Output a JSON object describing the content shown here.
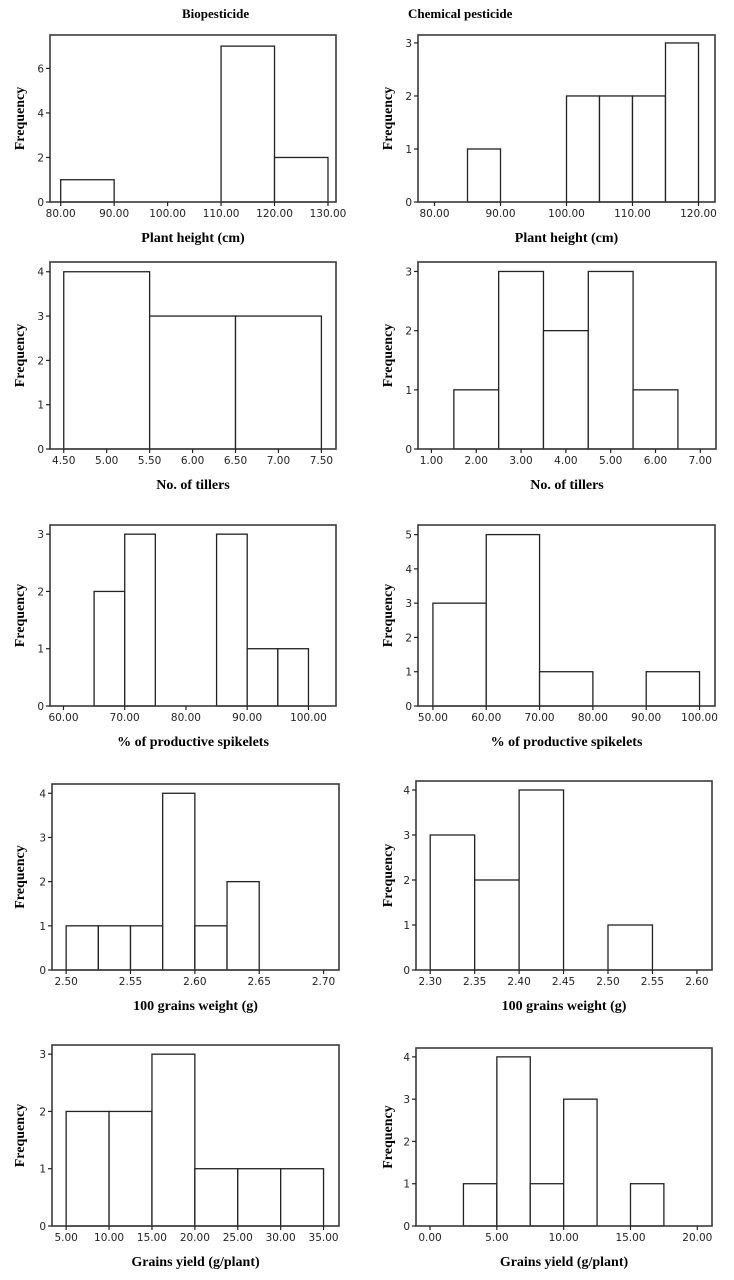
{
  "column_titles": [
    "Biopesticide",
    "Chemical pesticide"
  ],
  "chart_data": [
    {
      "type": "bar",
      "subtype": "histogram",
      "group": "Biopesticide",
      "xlabel": "Plant height (cm)",
      "ylabel": "Frequency",
      "xticks": [
        80,
        90,
        100,
        110,
        120,
        130
      ],
      "xtick_labels": [
        "80.00",
        "90.00",
        "100.00",
        "110.00",
        "120.00",
        "130.00"
      ],
      "xlim": [
        78,
        131.5
      ],
      "yticks": [
        0,
        2,
        4,
        6
      ],
      "ylim": [
        0,
        7.5
      ],
      "bins": [
        {
          "x0": 80,
          "x1": 90,
          "count": 1
        },
        {
          "x0": 110,
          "x1": 120,
          "count": 7
        },
        {
          "x0": 120,
          "x1": 130,
          "count": 2
        }
      ]
    },
    {
      "type": "bar",
      "subtype": "histogram",
      "group": "Chemical pesticide",
      "xlabel": "Plant height (cm)",
      "ylabel": "Frequency",
      "xticks": [
        80,
        90,
        100,
        110,
        120
      ],
      "xtick_labels": [
        "80.00",
        "90.00",
        "100.00",
        "110.00",
        "120.00"
      ],
      "xlim": [
        77.5,
        122.5
      ],
      "yticks": [
        0,
        1,
        2,
        3
      ],
      "ylim": [
        0,
        3.15
      ],
      "bins": [
        {
          "x0": 85,
          "x1": 90,
          "count": 1
        },
        {
          "x0": 100,
          "x1": 105,
          "count": 2
        },
        {
          "x0": 105,
          "x1": 110,
          "count": 2
        },
        {
          "x0": 110,
          "x1": 115,
          "count": 2
        },
        {
          "x0": 115,
          "x1": 120,
          "count": 3
        }
      ]
    },
    {
      "type": "bar",
      "subtype": "histogram",
      "group": "Biopesticide",
      "xlabel": "No. of tillers",
      "ylabel": "Frequency",
      "xticks": [
        4.5,
        5,
        5.5,
        6,
        6.5,
        7,
        7.5
      ],
      "xtick_labels": [
        "4.50",
        "5.00",
        "5.50",
        "6.00",
        "6.50",
        "7.00",
        "7.50"
      ],
      "xlim": [
        4.34,
        7.67
      ],
      "yticks": [
        0,
        1,
        2,
        3,
        4
      ],
      "ylim": [
        0,
        4.22
      ],
      "bins": [
        {
          "x0": 4.5,
          "x1": 5.5,
          "count": 4
        },
        {
          "x0": 5.5,
          "x1": 6.5,
          "count": 3
        },
        {
          "x0": 6.5,
          "x1": 7.5,
          "count": 3
        }
      ]
    },
    {
      "type": "bar",
      "subtype": "histogram",
      "group": "Chemical pesticide",
      "xlabel": "No. of tillers",
      "ylabel": "Frequency",
      "xticks": [
        1,
        2,
        3,
        4,
        5,
        6,
        7
      ],
      "xtick_labels": [
        "1.00",
        "2.00",
        "3.00",
        "4.00",
        "5.00",
        "6.00",
        "7.00"
      ],
      "xlim": [
        0.7,
        7.35
      ],
      "yticks": [
        0,
        1,
        2,
        3
      ],
      "ylim": [
        0,
        3.16
      ],
      "bins": [
        {
          "x0": 1.5,
          "x1": 2.5,
          "count": 1
        },
        {
          "x0": 2.5,
          "x1": 3.5,
          "count": 3
        },
        {
          "x0": 3.5,
          "x1": 4.5,
          "count": 2
        },
        {
          "x0": 4.5,
          "x1": 5.5,
          "count": 3
        },
        {
          "x0": 5.5,
          "x1": 6.5,
          "count": 1
        }
      ]
    },
    {
      "type": "bar",
      "subtype": "histogram",
      "group": "Biopesticide",
      "xlabel": "% of productive spikelets",
      "ylabel": "Frequency",
      "xticks": [
        60,
        70,
        80,
        90,
        100
      ],
      "xtick_labels": [
        "60.00",
        "70.00",
        "80.00",
        "90.00",
        "100.00"
      ],
      "xlim": [
        57.8,
        104.5
      ],
      "yticks": [
        0,
        1,
        2,
        3
      ],
      "ylim": [
        0,
        3.16
      ],
      "bins": [
        {
          "x0": 65,
          "x1": 70,
          "count": 2
        },
        {
          "x0": 70,
          "x1": 75,
          "count": 3
        },
        {
          "x0": 85,
          "x1": 90,
          "count": 3
        },
        {
          "x0": 90,
          "x1": 95,
          "count": 1
        },
        {
          "x0": 95,
          "x1": 100,
          "count": 1
        }
      ]
    },
    {
      "type": "bar",
      "subtype": "histogram",
      "group": "Chemical pesticide",
      "xlabel": "% of productive spikelets",
      "ylabel": "Frequency",
      "xticks": [
        50,
        60,
        70,
        80,
        90,
        100
      ],
      "xtick_labels": [
        "50.00",
        "60.00",
        "70.00",
        "80.00",
        "90.00",
        "100.00"
      ],
      "xlim": [
        47.2,
        102.9
      ],
      "yticks": [
        0,
        1,
        2,
        3,
        4,
        5
      ],
      "ylim": [
        0,
        5.28
      ],
      "bins": [
        {
          "x0": 50,
          "x1": 60,
          "count": 3
        },
        {
          "x0": 60,
          "x1": 70,
          "count": 5
        },
        {
          "x0": 70,
          "x1": 80,
          "count": 1
        },
        {
          "x0": 90,
          "x1": 100,
          "count": 1
        }
      ]
    },
    {
      "type": "bar",
      "subtype": "histogram",
      "group": "Biopesticide",
      "xlabel": "100 grains weight (g)",
      "ylabel": "Frequency",
      "xticks": [
        2.5,
        2.55,
        2.6,
        2.65,
        2.7
      ],
      "xtick_labels": [
        "2.50",
        "2.55",
        "2.60",
        "2.65",
        "2.70"
      ],
      "xlim": [
        2.489,
        2.712
      ],
      "yticks": [
        0,
        1,
        2,
        3,
        4
      ],
      "ylim": [
        0,
        4.21
      ],
      "bins": [
        {
          "x0": 2.5,
          "x1": 2.525,
          "count": 1
        },
        {
          "x0": 2.525,
          "x1": 2.55,
          "count": 1
        },
        {
          "x0": 2.55,
          "x1": 2.575,
          "count": 1
        },
        {
          "x0": 2.575,
          "x1": 2.6,
          "count": 4
        },
        {
          "x0": 2.6,
          "x1": 2.625,
          "count": 1
        },
        {
          "x0": 2.625,
          "x1": 2.65,
          "count": 2
        }
      ]
    },
    {
      "type": "bar",
      "subtype": "histogram",
      "group": "Chemical pesticide",
      "xlabel": "100 grains weight (g)",
      "ylabel": "Frequency",
      "xticks": [
        2.3,
        2.35,
        2.4,
        2.45,
        2.5,
        2.55,
        2.6
      ],
      "xtick_labels": [
        "2.30",
        "2.35",
        "2.40",
        "2.45",
        "2.50",
        "2.55",
        "2.60"
      ],
      "xlim": [
        2.284,
        2.617
      ],
      "yticks": [
        0,
        1,
        2,
        3,
        4
      ],
      "ylim": [
        0,
        4.2
      ],
      "bins": [
        {
          "x0": 2.3,
          "x1": 2.35,
          "count": 3
        },
        {
          "x0": 2.35,
          "x1": 2.4,
          "count": 2
        },
        {
          "x0": 2.4,
          "x1": 2.45,
          "count": 4
        },
        {
          "x0": 2.5,
          "x1": 2.55,
          "count": 1
        }
      ]
    },
    {
      "type": "bar",
      "subtype": "histogram",
      "group": "Biopesticide",
      "xlabel": "Grains yield (g/plant)",
      "ylabel": "Frequency",
      "xticks": [
        5,
        10,
        15,
        20,
        25,
        30,
        35
      ],
      "xtick_labels": [
        "5.00",
        "10.00",
        "15.00",
        "20.00",
        "25.00",
        "30.00",
        "35.00"
      ],
      "xlim": [
        3.35,
        36.8
      ],
      "yticks": [
        0,
        1,
        2,
        3
      ],
      "ylim": [
        0,
        3.16
      ],
      "bins": [
        {
          "x0": 5,
          "x1": 10,
          "count": 2
        },
        {
          "x0": 10,
          "x1": 15,
          "count": 2
        },
        {
          "x0": 15,
          "x1": 20,
          "count": 3
        },
        {
          "x0": 20,
          "x1": 25,
          "count": 1
        },
        {
          "x0": 25,
          "x1": 30,
          "count": 1
        },
        {
          "x0": 30,
          "x1": 35,
          "count": 1
        }
      ]
    },
    {
      "type": "bar",
      "subtype": "histogram",
      "group": "Chemical pesticide",
      "xlabel": "Grains yield (g/plant)",
      "ylabel": "Frequency",
      "xticks": [
        0,
        5,
        10,
        15,
        20
      ],
      "xtick_labels": [
        "0.00",
        "5.00",
        "10.00",
        "15.00",
        "20.00"
      ],
      "xlim": [
        -1.05,
        21.1
      ],
      "yticks": [
        0,
        1,
        2,
        3,
        4
      ],
      "ylim": [
        0,
        4.21
      ],
      "bins": [
        {
          "x0": 2.5,
          "x1": 5,
          "count": 1
        },
        {
          "x0": 5,
          "x1": 7.5,
          "count": 4
        },
        {
          "x0": 7.5,
          "x1": 10,
          "count": 1
        },
        {
          "x0": 10,
          "x1": 12.5,
          "count": 3
        },
        {
          "x0": 15,
          "x1": 17.5,
          "count": 1
        }
      ]
    }
  ]
}
